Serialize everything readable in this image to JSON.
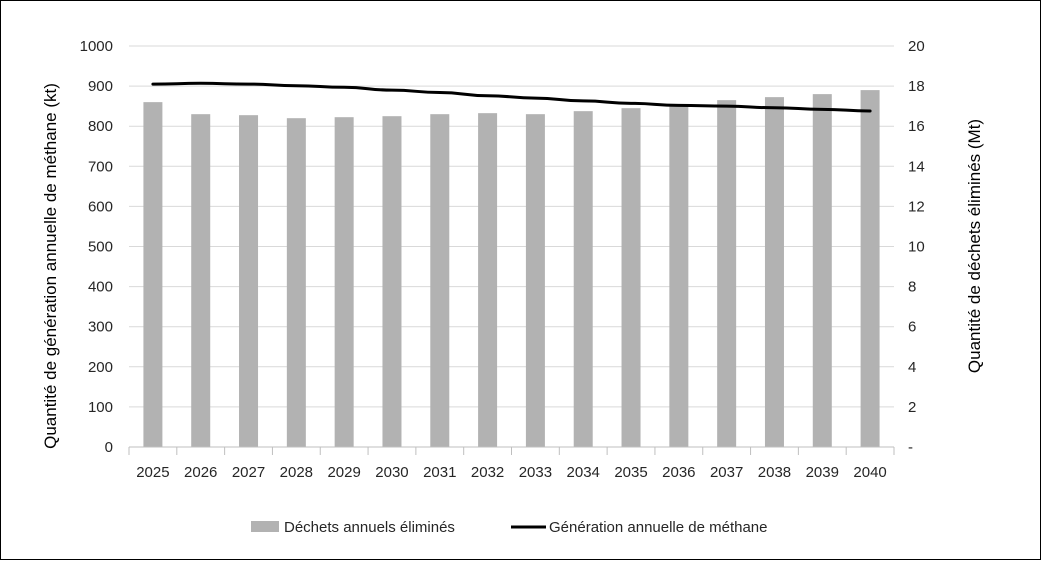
{
  "chart_data": {
    "type": "bar",
    "categories": [
      "2025",
      "2026",
      "2027",
      "2028",
      "2029",
      "2030",
      "2031",
      "2032",
      "2033",
      "2034",
      "2035",
      "2036",
      "2037",
      "2038",
      "2039",
      "2040"
    ],
    "series": [
      {
        "name": "Déchets annuels éliminés",
        "type": "bar",
        "axis": "right",
        "color": "#b2b2b2",
        "values": [
          17.2,
          16.6,
          16.55,
          16.4,
          16.45,
          16.5,
          16.6,
          16.65,
          16.6,
          16.75,
          16.9,
          17.05,
          17.3,
          17.45,
          17.6,
          17.8
        ]
      },
      {
        "name": "Génération annuelle de méthane",
        "type": "line",
        "axis": "left",
        "color": "#000000",
        "values": [
          905,
          907,
          905,
          901,
          897,
          890,
          884,
          876,
          870,
          863,
          857,
          852,
          850,
          846,
          842,
          838
        ]
      }
    ],
    "left_axis": {
      "label": "Quantité de génération annuelle de méthane (kt)",
      "ylim": [
        0,
        1000
      ],
      "ticks": [
        "0",
        "100",
        "200",
        "300",
        "400",
        "500",
        "600",
        "700",
        "800",
        "900",
        "1000"
      ]
    },
    "right_axis": {
      "label": "Quantité de déchets éliminés (Mt)",
      "ylim": [
        0,
        20
      ],
      "ticks": [
        "-",
        "2",
        "4",
        "6",
        "8",
        "10",
        "12",
        "14",
        "16",
        "18",
        "20"
      ]
    },
    "grid": true,
    "legend": "bottom"
  }
}
